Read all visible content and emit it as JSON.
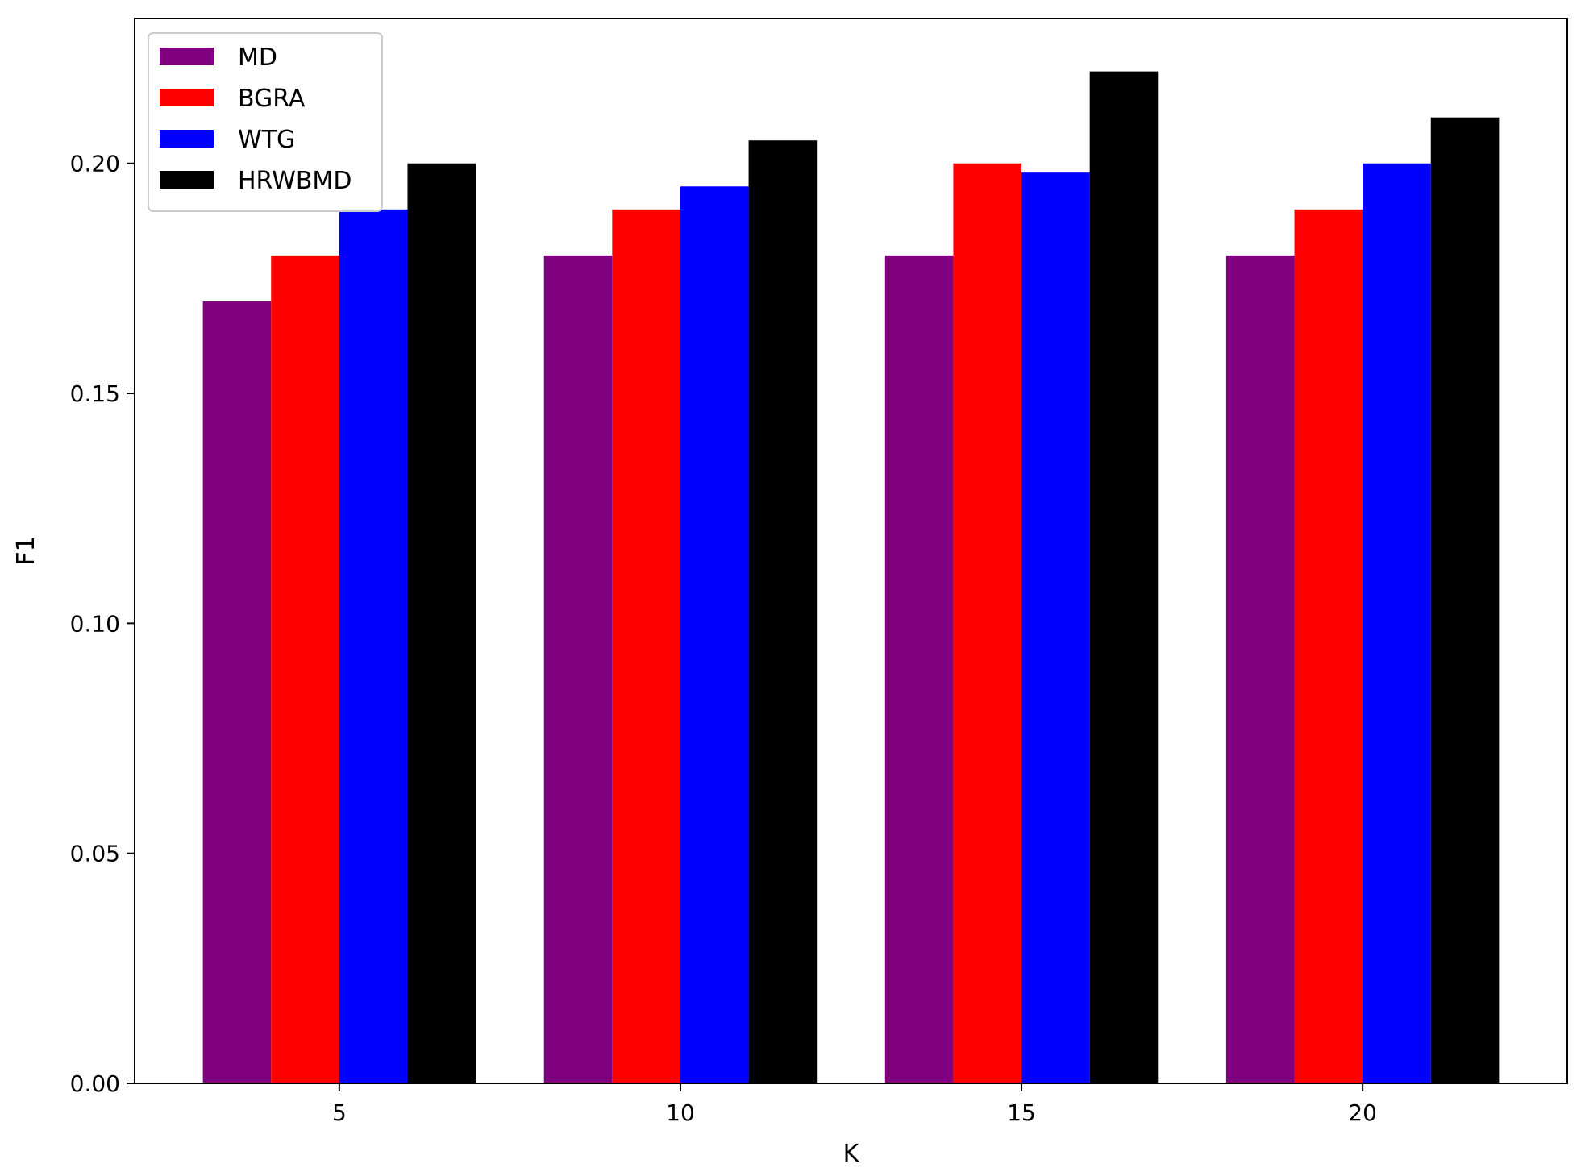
{
  "chart_data": {
    "type": "bar",
    "title": "",
    "xlabel": "K",
    "ylabel": "F1",
    "categories": [
      "5",
      "10",
      "15",
      "20"
    ],
    "series": [
      {
        "name": "MD",
        "color": "#800080",
        "values": [
          0.17,
          0.18,
          0.18,
          0.18
        ]
      },
      {
        "name": "BGRA",
        "color": "#ff0000",
        "values": [
          0.18,
          0.19,
          0.2,
          0.19
        ]
      },
      {
        "name": "WTG",
        "color": "#0000ff",
        "values": [
          0.19,
          0.195,
          0.198,
          0.2
        ]
      },
      {
        "name": "HRWBMD",
        "color": "#000000",
        "values": [
          0.2,
          0.205,
          0.22,
          0.21
        ]
      }
    ],
    "ylim": [
      0,
      0.2315
    ],
    "yticks": [
      "0.00",
      "0.05",
      "0.10",
      "0.15",
      "0.20"
    ],
    "grid": false,
    "legend_position": "top-left"
  }
}
